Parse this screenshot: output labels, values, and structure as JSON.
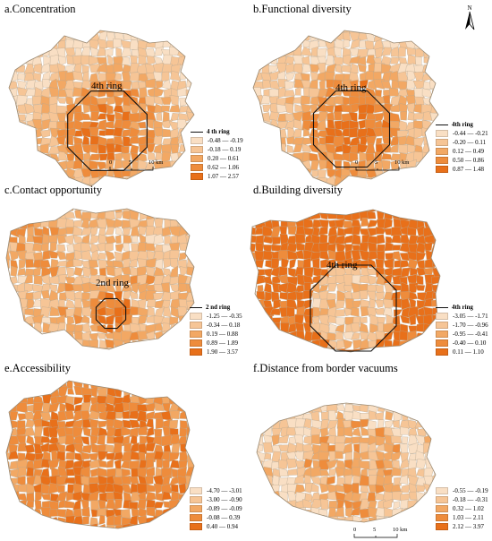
{
  "north_label": "N",
  "scale_labels": [
    "0",
    "5",
    "10 km"
  ],
  "colors": {
    "ring": "#111111",
    "boundary": "#b8a890",
    "ramp": [
      "#f9dfc4",
      "#f6c596",
      "#f2a864",
      "#ee8c3c",
      "#e8701a"
    ]
  },
  "panels": [
    {
      "title": "a.Concentration",
      "ring_label": "4th ring",
      "legend_title": "4 th ring",
      "legend": [
        "-0.48 — -0.19",
        "-0.18 — 0.19",
        "0.20 — 0.61",
        "0.62 — 1.06",
        "1.07 — 2.57"
      ]
    },
    {
      "title": "b.Functional diversity",
      "ring_label": "4th ring",
      "legend_title": "4th ring",
      "legend": [
        "-0.44 — -0.21",
        "-0.20 — 0.11",
        "0.12 — 0.49",
        "0.50 — 0.86",
        "0.87 — 1.48"
      ]
    },
    {
      "title": "c.Contact opportunity",
      "ring_label": "2nd ring",
      "legend_title": "2 nd ring",
      "legend": [
        "-1.25 — -0.35",
        "-0.34 — 0.18",
        "0.19 — 0.88",
        "0.89 — 1.89",
        "1.90 — 3.57"
      ]
    },
    {
      "title": "d.Building diversity",
      "ring_label": "4th ring",
      "legend_title": "4th ring",
      "legend": [
        "-3.05 — -1.71",
        "-1.70 — -0.96",
        "-0.95 — -0.41",
        "-0.40 — 0.10",
        "0.11 — 1.10"
      ]
    },
    {
      "title": "e.Accessibility",
      "ring_label": "",
      "legend_title": "",
      "legend": [
        "-4.70 — -3.01",
        "-3.00 — -0.90",
        "-0.89 — -0.09",
        "-0.08 — 0.39",
        "0.40 — 0.94"
      ]
    },
    {
      "title": "f.Distance from border vacuums",
      "ring_label": "",
      "legend_title": "",
      "legend": [
        "-0.55 — -0.19",
        "-0.18 — -0.31",
        "0.32 — 1.02",
        "1.03 — 2.11",
        "2.12 — 3.97"
      ]
    }
  ]
}
